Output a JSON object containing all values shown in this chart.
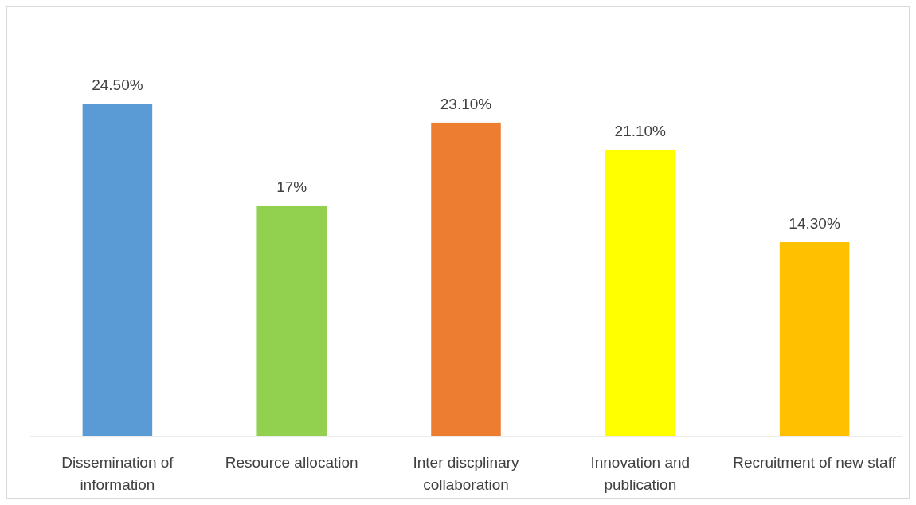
{
  "chart_data": {
    "type": "bar",
    "categories": [
      "Dissemination of information",
      "Resource allocation",
      "Inter discplinary collaboration",
      "Innovation and publication",
      "Recruitment of new staff"
    ],
    "values": [
      24.5,
      17,
      23.1,
      21.1,
      14.3
    ],
    "colors": [
      "#5b9bd5",
      "#92d050",
      "#ed7d31",
      "#ffff00",
      "#ffc000"
    ],
    "value_labels": [
      "24.50%",
      "17%",
      "23.10%",
      "21.10%",
      "14.30%"
    ]
  }
}
